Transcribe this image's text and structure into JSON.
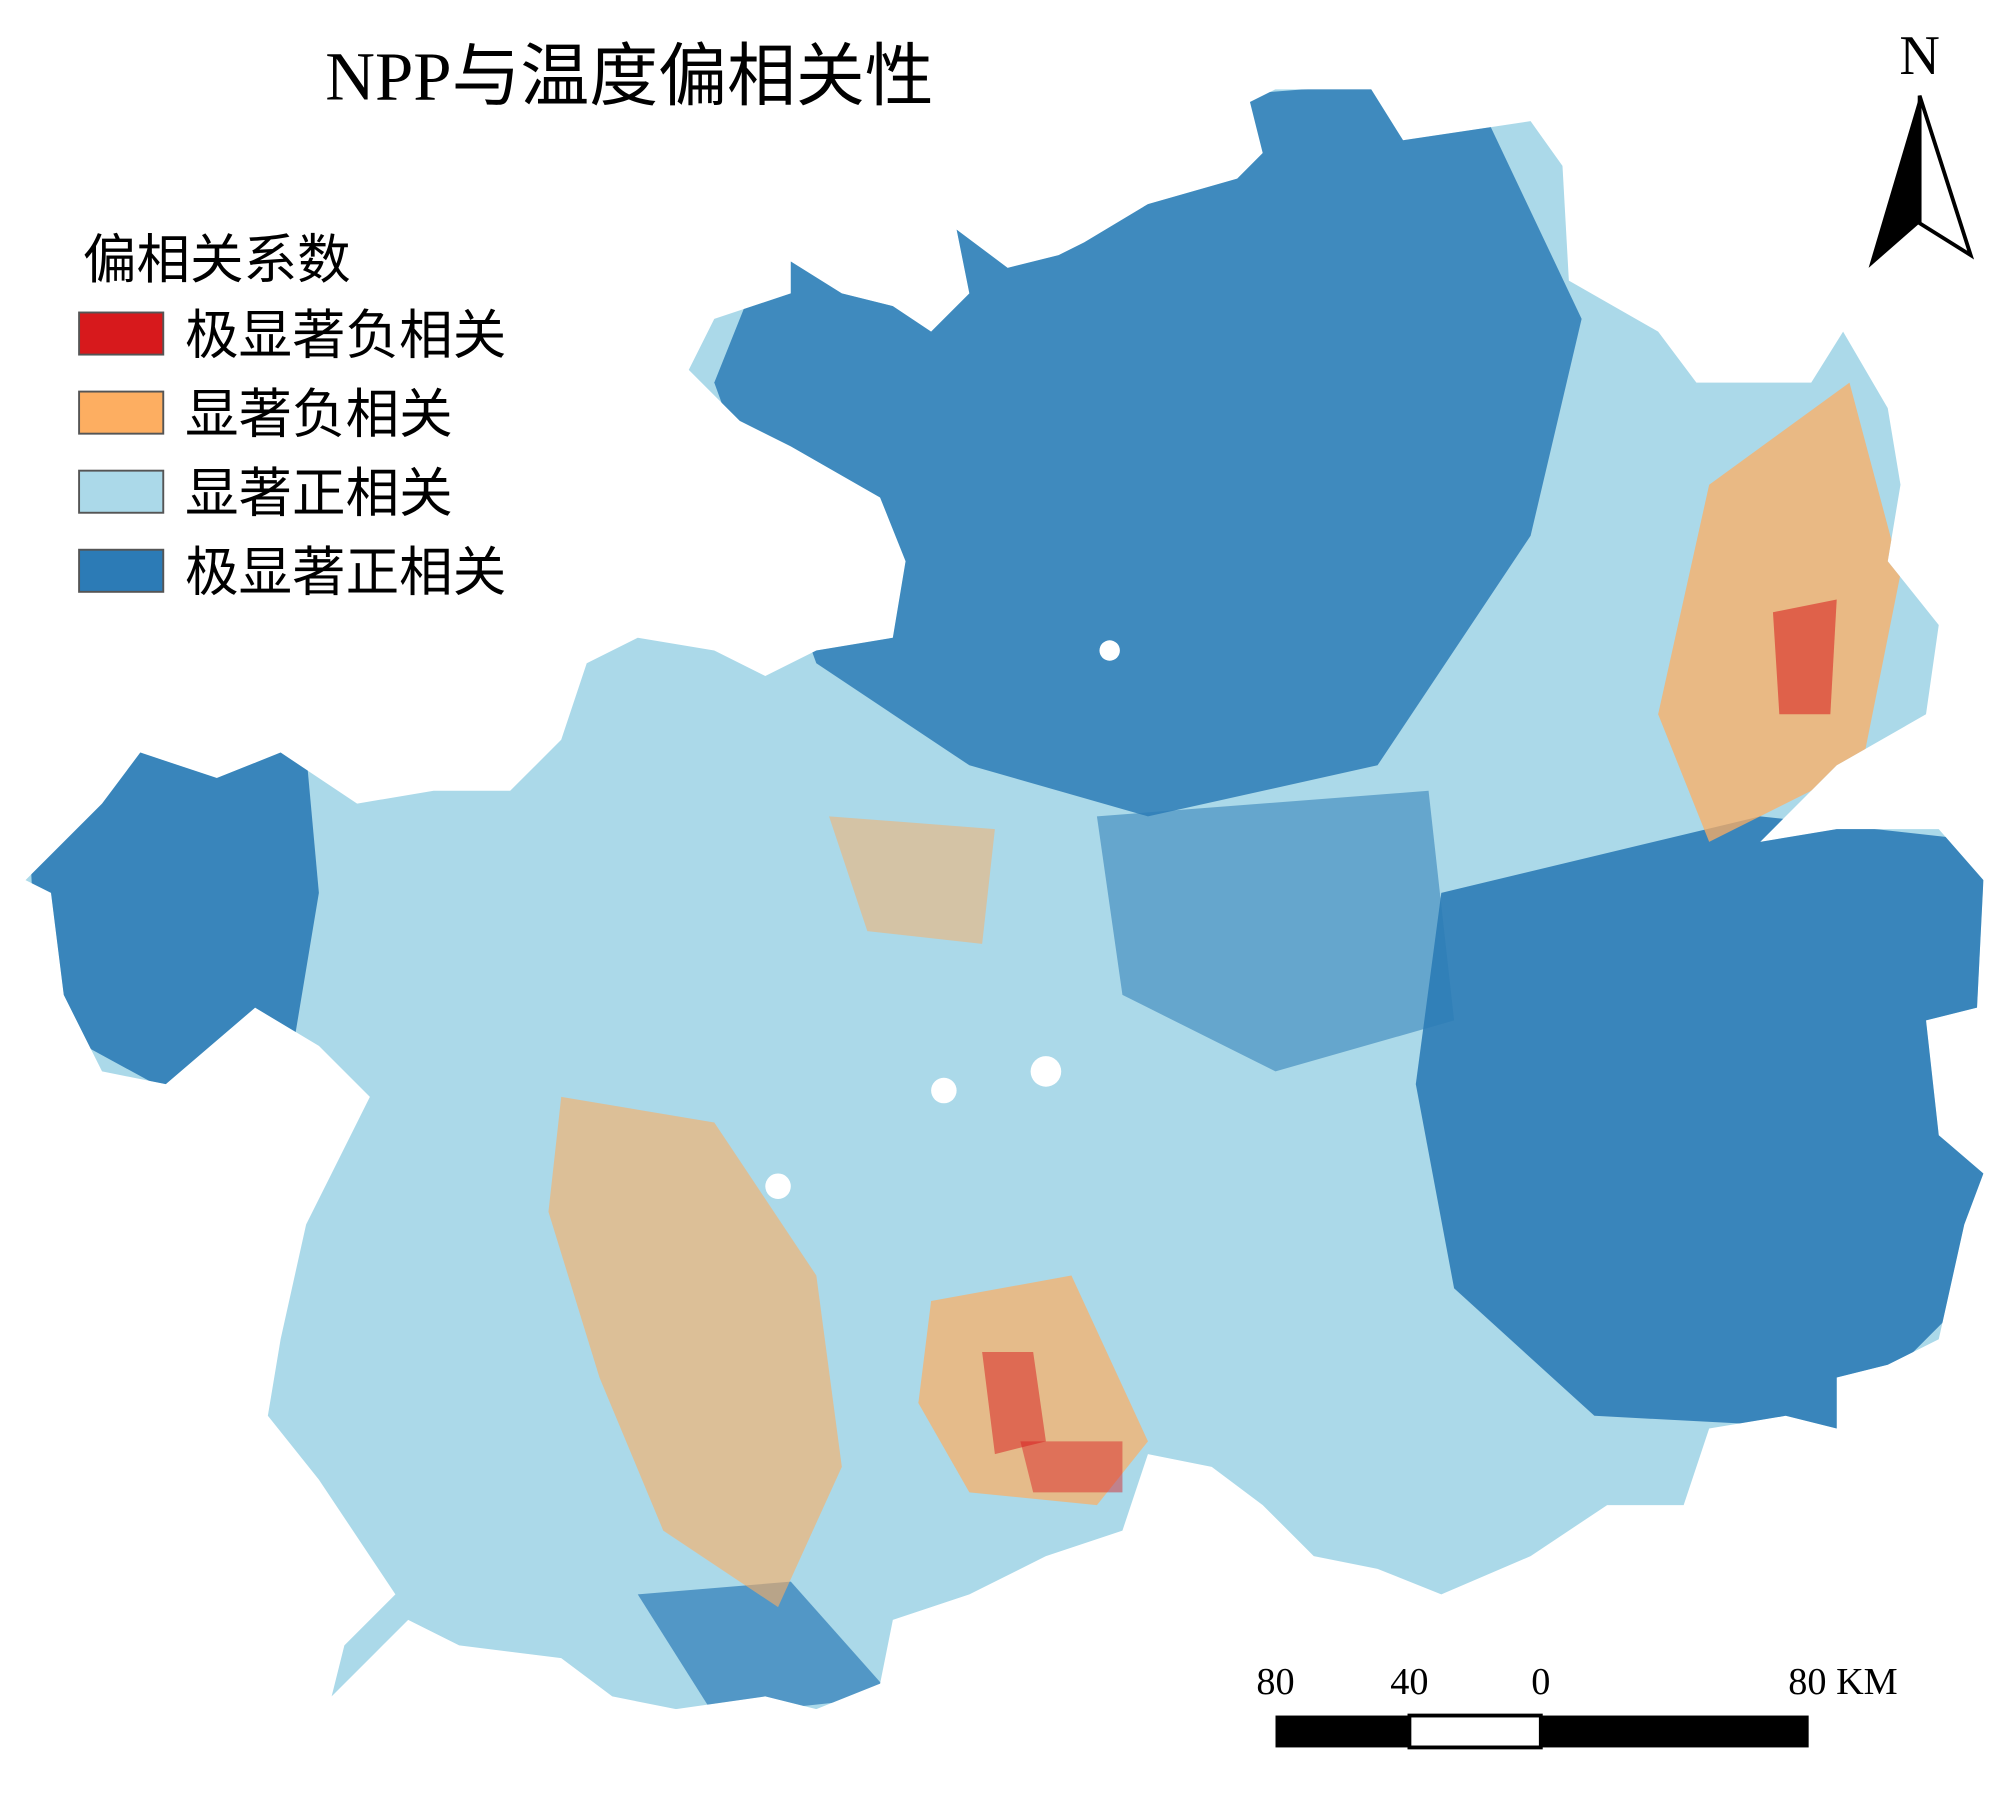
{
  "title": "NPP与温度偏相关性",
  "legend": {
    "title": "偏相关系数",
    "items": [
      {
        "label": "极显著负相关",
        "color": "#d7191c"
      },
      {
        "label": "显著负相关",
        "color": "#fdae61"
      },
      {
        "label": "显著正相关",
        "color": "#abd9e9"
      },
      {
        "label": "极显著正相关",
        "color": "#2c7bb6"
      }
    ]
  },
  "north_arrow": {
    "label": "N"
  },
  "scale_bar": {
    "labels": [
      "80",
      "40",
      "0",
      "80 KM"
    ]
  }
}
